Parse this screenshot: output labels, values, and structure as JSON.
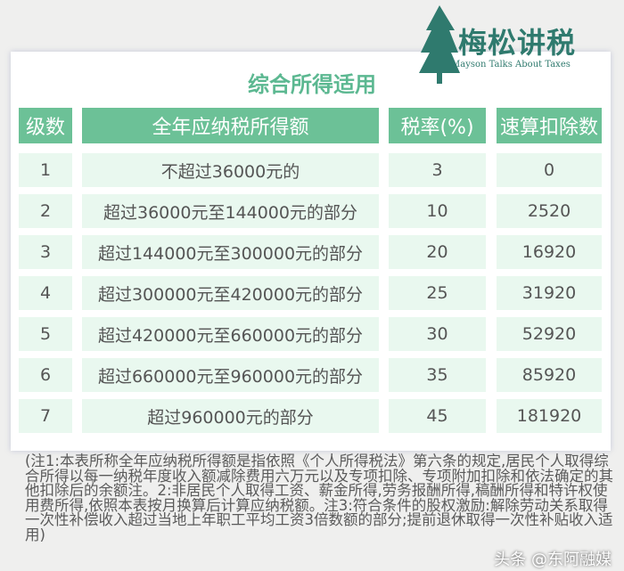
{
  "logo": {
    "name": "梅松讲税",
    "subtitle": "Mayson Talks About Taxes",
    "color": "#2f7a6e"
  },
  "title": "综合所得适用",
  "headers": [
    "级数",
    "全年应纳税所得额",
    "税率(%)",
    "速算扣除数"
  ],
  "rows": [
    [
      "1",
      "不超过36000元的",
      "3",
      "0"
    ],
    [
      "2",
      "超过36000元至144000元的部分",
      "10",
      "2520"
    ],
    [
      "3",
      "超过144000元至300000元的部分",
      "20",
      "16920"
    ],
    [
      "4",
      "超过300000元至420000元的部分",
      "25",
      "31920"
    ],
    [
      "5",
      "超过420000元至660000元的部分",
      "30",
      "52920"
    ],
    [
      "6",
      "超过660000元至960000元的部分",
      "35",
      "85920"
    ],
    [
      "7",
      "超过960000元的部分",
      "45",
      "181920"
    ]
  ],
  "notes": "(注1:本表所称全年应纳税所得额是指依照《个人所得税法》第六条的规定,居民个人取得综合所得以每一纳税年度收入额减除费用六万元以及专项扣除、专项附加扣除和依法确定的其他扣除后的余额注。2:非居民个人取得工资、薪金所得,劳务报酬所得,稿酬所得和特许权使用费所得,依照本表按月换算后计算应纳税额。注3:符合条件的股权激励:解除劳动关系取得一次性补偿收入超过当地上年职工平均工资3倍数额的部分;提前退休取得一次性补贴收入适用)",
  "watermark": "头条 @东阿融媒",
  "colors": {
    "header": "#6cc197",
    "cell": "#e9f8ef",
    "title": "#5cb891"
  }
}
